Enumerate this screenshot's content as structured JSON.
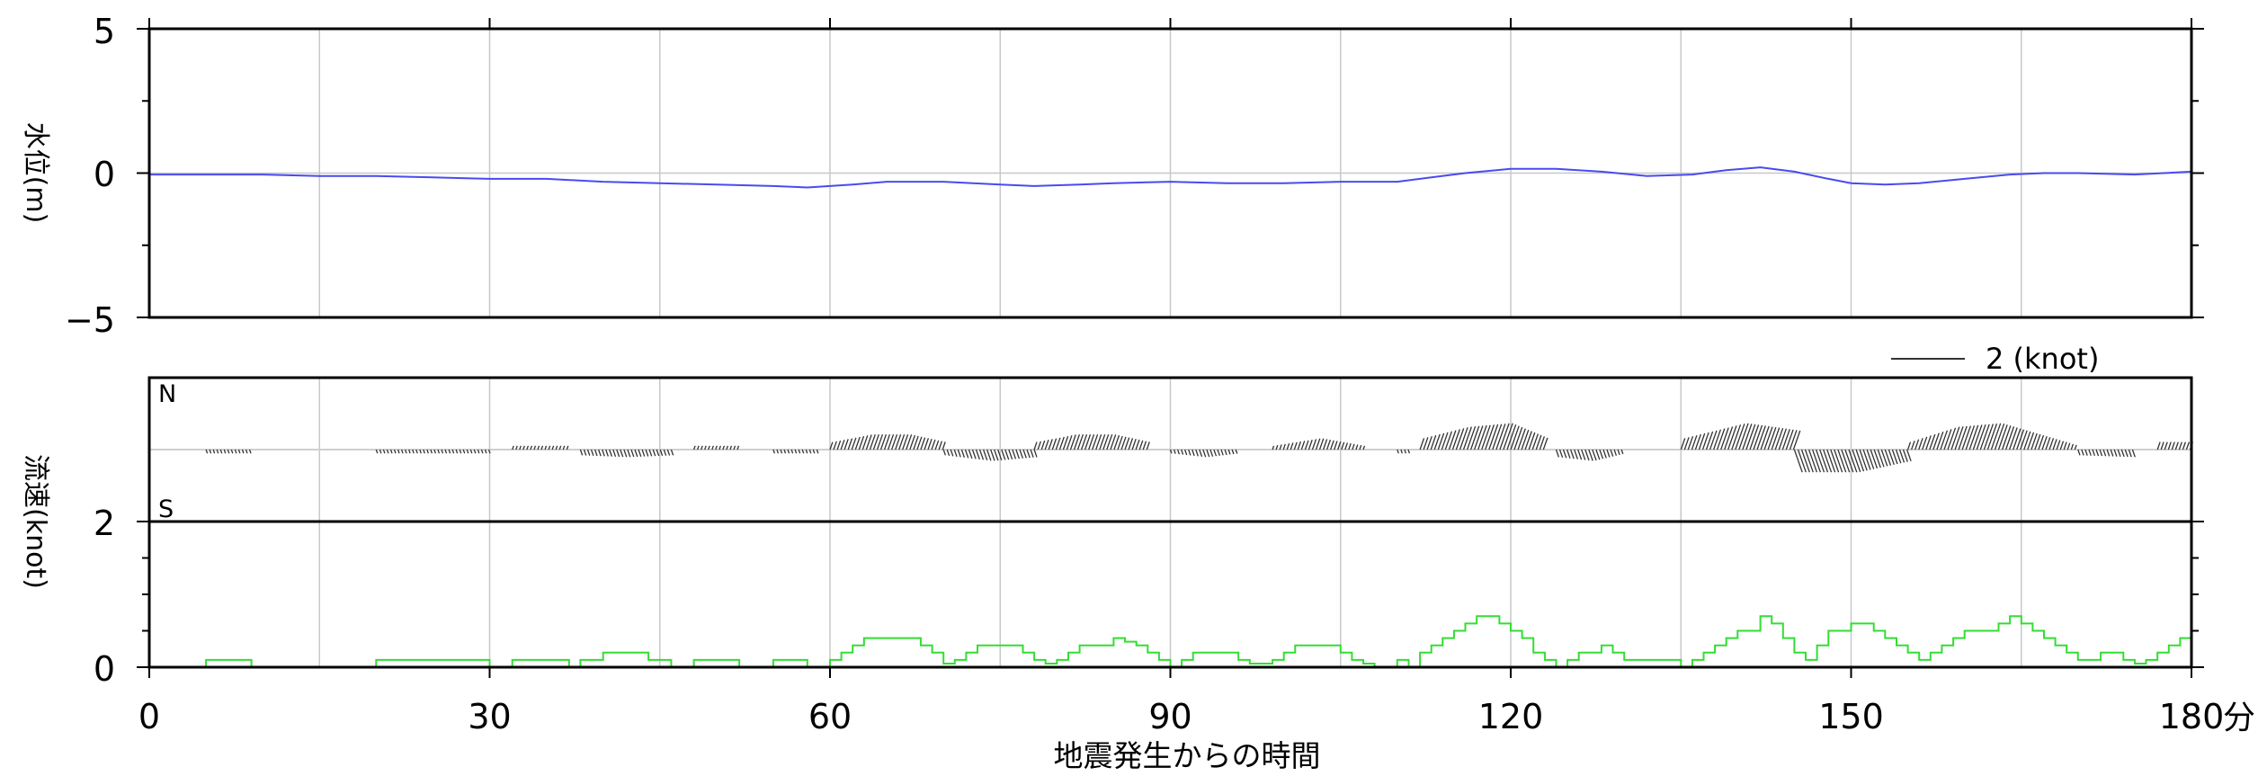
{
  "chart_data": [
    {
      "type": "line",
      "ylabel": "水位(m)",
      "xlim": [
        0,
        180
      ],
      "ylim": [
        -5,
        5
      ],
      "yticks": [
        -5,
        0,
        5
      ],
      "xgrid": [
        0,
        15,
        30,
        45,
        60,
        75,
        90,
        105,
        120,
        135,
        150,
        165,
        180
      ],
      "line_color": "#4a4af0",
      "series": [
        {
          "x": [
            0,
            5,
            10,
            15,
            20,
            25,
            30,
            35,
            40,
            45,
            50,
            55,
            58,
            62,
            65,
            70,
            75,
            78,
            82,
            85,
            90,
            95,
            100,
            105,
            110,
            113,
            116,
            120,
            124,
            128,
            132,
            136,
            139,
            142,
            145,
            148,
            150,
            153,
            156,
            160,
            164,
            167,
            170,
            175,
            180
          ],
          "y": [
            -0.05,
            -0.05,
            -0.05,
            -0.1,
            -0.1,
            -0.15,
            -0.2,
            -0.2,
            -0.3,
            -0.35,
            -0.4,
            -0.45,
            -0.5,
            -0.4,
            -0.3,
            -0.3,
            -0.4,
            -0.45,
            -0.4,
            -0.35,
            -0.3,
            -0.35,
            -0.35,
            -0.3,
            -0.3,
            -0.15,
            0.0,
            0.15,
            0.15,
            0.05,
            -0.1,
            -0.05,
            0.1,
            0.2,
            0.05,
            -0.2,
            -0.35,
            -0.4,
            -0.35,
            -0.2,
            -0.05,
            0.0,
            0.0,
            -0.05,
            0.05
          ]
        }
      ]
    },
    {
      "type": "quiver",
      "xlim": [
        0,
        180
      ],
      "n_label": "N",
      "s_label": "S",
      "scale_label": "2 (knot)",
      "arrow_color": "#333333",
      "segments": [
        {
          "x0": 5,
          "x1": 9,
          "v": [
            -0.1
          ]
        },
        {
          "x0": 20,
          "x1": 30,
          "v": [
            -0.1
          ]
        },
        {
          "x0": 32,
          "x1": 37,
          "v": [
            0.1
          ]
        },
        {
          "x0": 38,
          "x1": 46,
          "v": [
            -0.15,
            -0.2,
            -0.15
          ]
        },
        {
          "x0": 48,
          "x1": 52,
          "v": [
            0.1
          ]
        },
        {
          "x0": 55,
          "x1": 59,
          "v": [
            -0.1
          ]
        },
        {
          "x0": 60,
          "x1": 70,
          "v": [
            0.2,
            0.4,
            0.4,
            0.2
          ]
        },
        {
          "x0": 70,
          "x1": 78,
          "v": [
            -0.15,
            -0.3,
            -0.2
          ]
        },
        {
          "x0": 78,
          "x1": 88,
          "v": [
            0.2,
            0.4,
            0.4,
            0.2
          ]
        },
        {
          "x0": 90,
          "x1": 96,
          "v": [
            -0.1,
            -0.2,
            -0.1
          ]
        },
        {
          "x0": 99,
          "x1": 107,
          "v": [
            0.1,
            0.3,
            0.1
          ]
        },
        {
          "x0": 110,
          "x1": 111,
          "v": [
            -0.1
          ]
        },
        {
          "x0": 112,
          "x1": 123,
          "v": [
            0.3,
            0.6,
            0.7,
            0.3
          ]
        },
        {
          "x0": 124,
          "x1": 130,
          "v": [
            -0.2,
            -0.3,
            -0.1
          ]
        },
        {
          "x0": 135,
          "x1": 145,
          "v": [
            0.3,
            0.7,
            0.5
          ]
        },
        {
          "x0": 145,
          "x1": 155,
          "v": [
            -0.6,
            -0.6,
            -0.3
          ]
        },
        {
          "x0": 155,
          "x1": 170,
          "v": [
            0.2,
            0.6,
            0.7,
            0.4,
            0.1
          ]
        },
        {
          "x0": 170,
          "x1": 175,
          "v": [
            -0.15,
            -0.2
          ]
        },
        {
          "x0": 177,
          "x1": 180,
          "v": [
            0.2
          ]
        }
      ]
    },
    {
      "type": "line",
      "ylabel": "流速(knot)",
      "xlim": [
        0,
        180
      ],
      "ylim": [
        0,
        2
      ],
      "yticks": [
        0,
        2
      ],
      "line_color": "#33dd33",
      "series": [
        {
          "x": [
            0,
            5,
            9,
            20,
            30,
            32,
            37,
            38,
            40,
            44,
            46,
            48,
            52,
            55,
            58,
            60,
            61,
            62,
            63,
            64,
            67,
            68,
            69,
            70,
            71,
            72,
            73,
            77,
            78,
            79,
            80,
            81,
            82,
            85,
            86,
            87,
            88,
            89,
            90,
            91,
            92,
            96,
            97,
            99,
            100,
            101,
            102,
            105,
            106,
            107,
            108,
            110,
            111,
            112,
            113,
            114,
            115,
            116,
            117,
            119,
            120,
            121,
            122,
            123,
            124,
            125,
            126,
            128,
            129,
            130,
            135,
            136,
            137,
            138,
            139,
            140,
            142,
            143,
            144,
            145,
            146,
            147,
            148,
            150,
            151,
            152,
            153,
            154,
            155,
            156,
            157,
            158,
            159,
            160,
            163,
            164,
            165,
            166,
            167,
            168,
            169,
            170,
            172,
            174,
            175,
            176,
            177,
            178,
            179,
            180
          ],
          "y": [
            0,
            0.1,
            0,
            0.1,
            0,
            0.1,
            0,
            0.1,
            0.2,
            0.1,
            0,
            0.1,
            0,
            0.1,
            0,
            0.1,
            0.2,
            0.3,
            0.4,
            0.4,
            0.4,
            0.3,
            0.2,
            0.05,
            0.1,
            0.2,
            0.3,
            0.2,
            0.1,
            0.05,
            0.1,
            0.2,
            0.3,
            0.4,
            0.35,
            0.3,
            0.2,
            0.1,
            0,
            0.1,
            0.2,
            0.1,
            0.05,
            0.1,
            0.2,
            0.3,
            0.3,
            0.2,
            0.1,
            0.05,
            0,
            0.1,
            0,
            0.2,
            0.3,
            0.4,
            0.5,
            0.6,
            0.7,
            0.6,
            0.5,
            0.4,
            0.2,
            0.1,
            0,
            0.1,
            0.2,
            0.3,
            0.2,
            0.1,
            0,
            0.1,
            0.2,
            0.3,
            0.4,
            0.5,
            0.7,
            0.6,
            0.4,
            0.2,
            0.1,
            0.3,
            0.5,
            0.6,
            0.6,
            0.5,
            0.4,
            0.3,
            0.2,
            0.1,
            0.2,
            0.3,
            0.4,
            0.5,
            0.6,
            0.7,
            0.6,
            0.5,
            0.4,
            0.3,
            0.2,
            0.1,
            0.2,
            0.1,
            0.05,
            0.1,
            0.2,
            0.3,
            0.4,
            0.4
          ]
        }
      ]
    }
  ],
  "x_axis": {
    "ticks": [
      0,
      30,
      60,
      90,
      120,
      150,
      180
    ],
    "unit": "分",
    "label": "地震発生からの時間"
  }
}
